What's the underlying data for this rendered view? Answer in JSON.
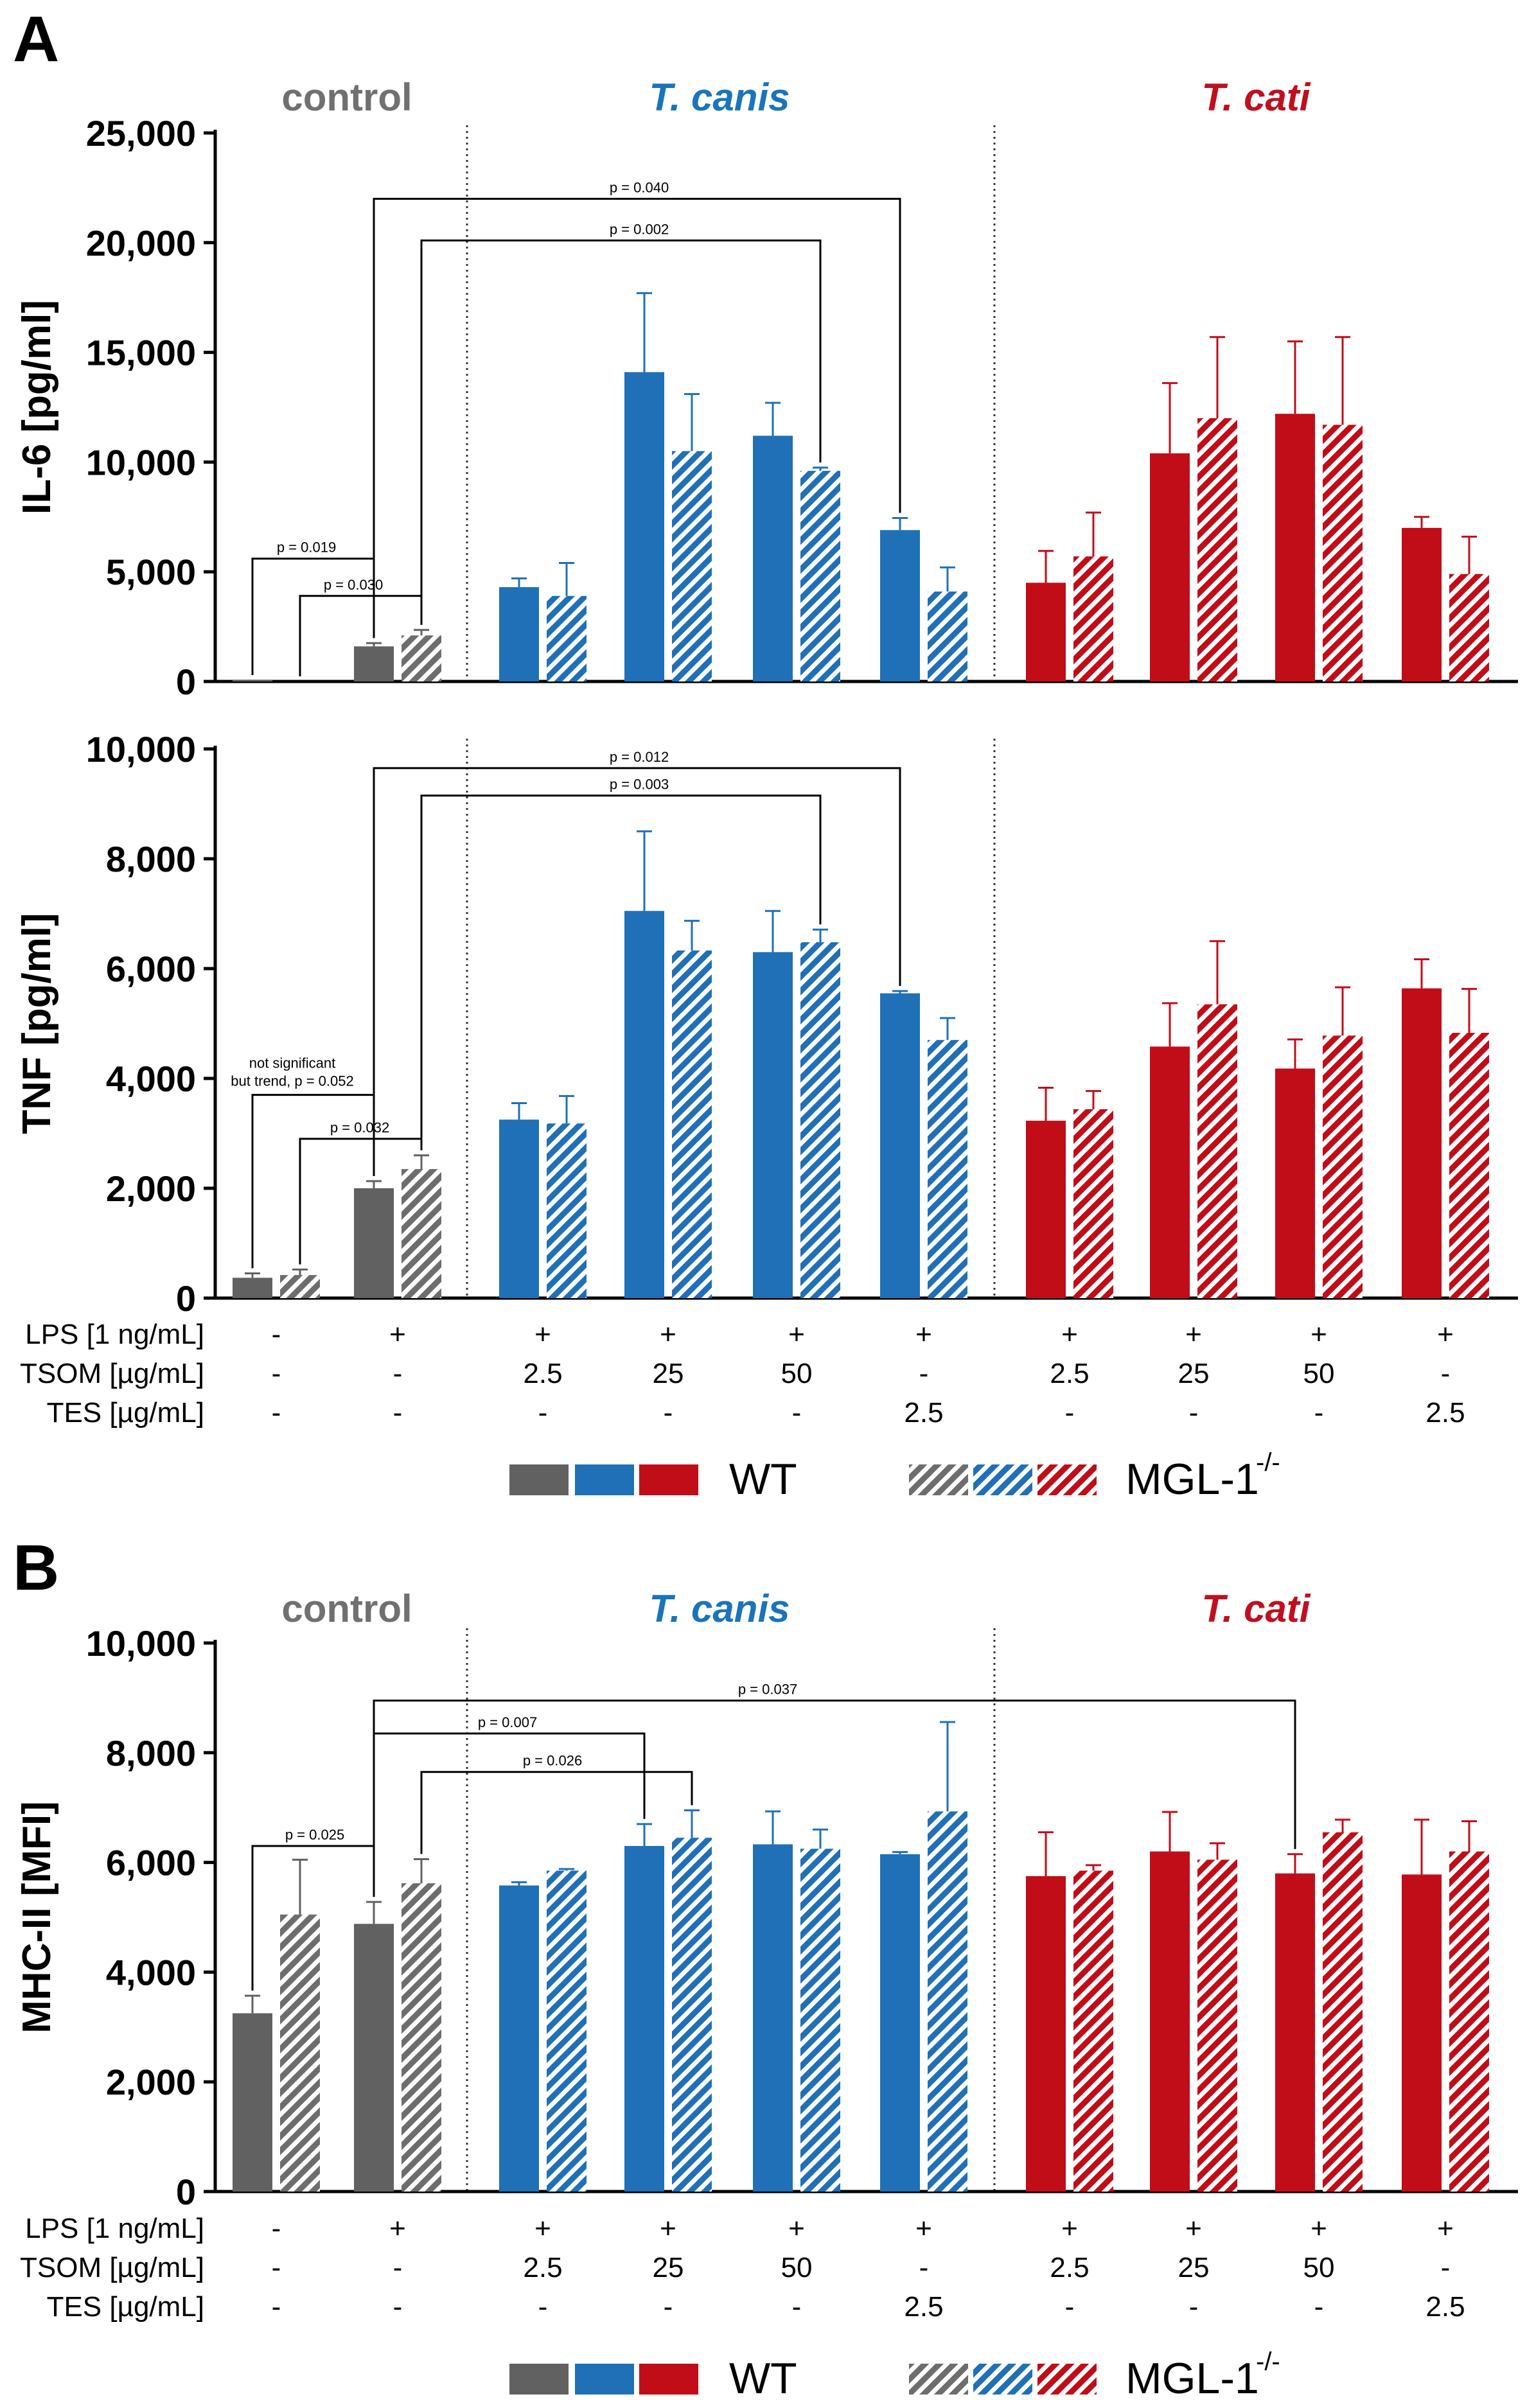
{
  "figure": {
    "panel_a_letter": "A",
    "panel_b_letter": "B"
  },
  "groups": [
    {
      "key": "control",
      "title": "control",
      "italic": false,
      "color": "#707070"
    },
    {
      "key": "canis",
      "title": "T. canis",
      "italic": true,
      "color": "#1a74bc"
    },
    {
      "key": "cati",
      "title": "T. cati",
      "italic": true,
      "color": "#c00f1e"
    }
  ],
  "colors": {
    "wt": [
      "#616161",
      "#1f70b7",
      "#c10d18"
    ],
    "hatch_base": [
      "#6d6d6d",
      "#1f70b7",
      "#c10d18"
    ]
  },
  "conditions": {
    "rows": [
      {
        "label": "LPS [1 ng/mL]",
        "values": [
          "-",
          "+",
          "+",
          "+",
          "+",
          "+",
          "+",
          "+",
          "+",
          "+"
        ]
      },
      {
        "label": "TSOM [µg/mL]",
        "values": [
          "-",
          "-",
          "2.5",
          "25",
          "50",
          "-",
          "2.5",
          "25",
          "50",
          "-"
        ]
      },
      {
        "label": "TES [µg/mL]",
        "values": [
          "-",
          "-",
          "-",
          "-",
          "-",
          "2.5",
          "-",
          "-",
          "-",
          "2.5"
        ]
      }
    ]
  },
  "legend": {
    "wt_label": "WT",
    "ko_label": "MGL-1",
    "ko_superscript": "-/-"
  },
  "chart_data": [
    {
      "type": "bar",
      "panel": "A",
      "title": "",
      "xlabel": "",
      "ylabel": "IL-6 [pg/ml]",
      "ylim": [
        0,
        25000
      ],
      "yticks": [
        0,
        5000,
        10000,
        15000,
        20000,
        25000
      ],
      "ytick_labels": [
        "0",
        "5,000",
        "10,000",
        "15,000",
        "20,000",
        "25,000"
      ],
      "series": [
        {
          "name": "WT",
          "values": [
            60,
            1600,
            4300,
            14100,
            11200,
            6900,
            4500,
            10400,
            12200,
            7000
          ],
          "errors": [
            0,
            150,
            400,
            3600,
            1500,
            550,
            1450,
            3200,
            3300,
            500
          ]
        },
        {
          "name": "MGL-1-/-",
          "values": [
            0,
            2100,
            3900,
            10500,
            9600,
            4100,
            5700,
            12000,
            11700,
            4900
          ],
          "errors": [
            0,
            250,
            1500,
            2600,
            150,
            1100,
            2000,
            3700,
            4000,
            1700
          ]
        }
      ],
      "annotations": [
        {
          "text": "p = 0.019",
          "level": 5600
        },
        {
          "text": "p = 0.030",
          "level": 3900
        },
        {
          "text": "p = 0.040",
          "level": 22000
        },
        {
          "text": "p = 0.002",
          "level": 20100
        }
      ]
    },
    {
      "type": "bar",
      "panel": "A",
      "title": "",
      "xlabel": "",
      "ylabel": "TNF [pg/ml]",
      "ylim": [
        0,
        10000
      ],
      "yticks": [
        0,
        2000,
        4000,
        6000,
        8000,
        10000
      ],
      "ytick_labels": [
        "0",
        "2,000",
        "4,000",
        "6,000",
        "8,000",
        "10,000"
      ],
      "series": [
        {
          "name": "WT",
          "values": [
            370,
            2000,
            3250,
            7050,
            6300,
            5550,
            3230,
            4580,
            4180,
            5640
          ],
          "errors": [
            80,
            130,
            300,
            1450,
            750,
            40,
            600,
            790,
            530,
            530
          ]
        },
        {
          "name": "MGL-1-/-",
          "values": [
            420,
            2350,
            3180,
            6330,
            6480,
            4700,
            3440,
            5350,
            4780,
            4830
          ],
          "errors": [
            100,
            250,
            500,
            540,
            230,
            400,
            330,
            1150,
            880,
            800
          ]
        }
      ],
      "annotations": [
        {
          "text": "not significant",
          "level": 0
        },
        {
          "text": "but trend, p = 0.052",
          "level": 0
        },
        {
          "text": "p = 0.032",
          "level": 2900
        },
        {
          "text": "p = 0.012",
          "level": 9650
        },
        {
          "text": "p = 0.003",
          "level": 9150
        }
      ]
    },
    {
      "type": "bar",
      "panel": "B",
      "title": "",
      "xlabel": "",
      "ylabel": "MHC-II [MFI]",
      "ylim": [
        0,
        10000
      ],
      "yticks": [
        0,
        2000,
        4000,
        6000,
        8000,
        10000
      ],
      "ytick_labels": [
        "0",
        "2,000",
        "4,000",
        "6,000",
        "8,000",
        "10,000"
      ],
      "series": [
        {
          "name": "WT",
          "values": [
            3250,
            4880,
            5580,
            6300,
            6330,
            6150,
            5750,
            6200,
            5800,
            5780
          ],
          "errors": [
            320,
            400,
            60,
            400,
            600,
            40,
            800,
            720,
            350,
            1000
          ]
        },
        {
          "name": "MGL-1-/-",
          "values": [
            5050,
            5620,
            5850,
            6450,
            6250,
            6930,
            5850,
            6050,
            6550,
            6200
          ],
          "errors": [
            1000,
            440,
            30,
            500,
            350,
            1630,
            100,
            300,
            230,
            550
          ]
        }
      ],
      "annotations": [
        {
          "text": "p = 0.025",
          "level": 6300
        },
        {
          "text": "p = 0.037",
          "level": 8950
        },
        {
          "text": "p = 0.007",
          "level": 8350
        },
        {
          "text": "p = 0.026",
          "level": 7650
        }
      ]
    }
  ]
}
